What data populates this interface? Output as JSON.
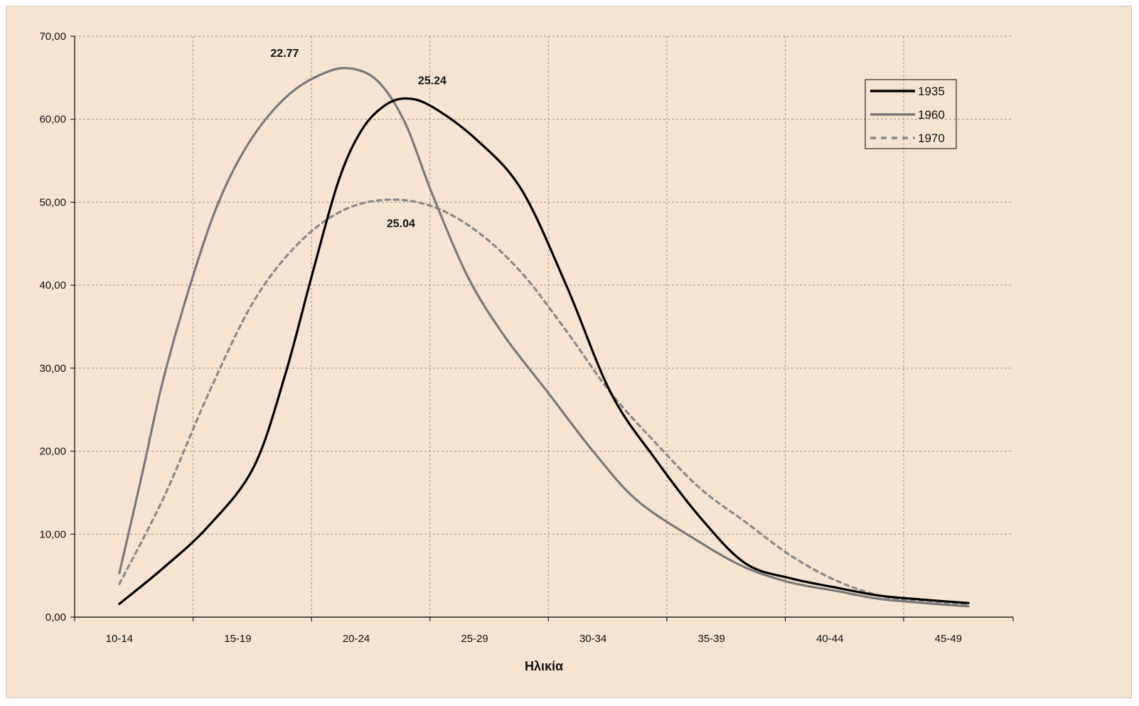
{
  "chart_data": {
    "type": "line",
    "x": [
      "10-14",
      "15-19",
      "20-24",
      "25-29",
      "30-34",
      "35-39",
      "40-44",
      "45-49"
    ],
    "xlabel": "Ηλικία",
    "ylabel": "",
    "ylim": [
      0,
      70
    ],
    "yticks": [
      "0,00",
      "10,00",
      "20,00",
      "30,00",
      "40,00",
      "50,00",
      "60,00",
      "70,00"
    ],
    "grid": true,
    "legend_position": "top-right",
    "series": [
      {
        "name": "1935",
        "color": "#000000",
        "style": "solid",
        "points": [
          [
            10.0,
            1.6
          ],
          [
            10.5,
            6.0
          ],
          [
            11.0,
            11.0
          ],
          [
            11.5,
            18.0
          ],
          [
            11.85,
            29.0
          ],
          [
            12.15,
            41.0
          ],
          [
            12.45,
            52.5
          ],
          [
            12.7,
            58.5
          ],
          [
            12.95,
            61.5
          ],
          [
            13.2,
            62.5
          ],
          [
            13.5,
            61.5
          ],
          [
            14.0,
            57.5
          ],
          [
            14.5,
            51.5
          ],
          [
            15.0,
            40.0
          ],
          [
            15.5,
            27.0
          ],
          [
            16.0,
            19.0
          ],
          [
            16.5,
            12.0
          ],
          [
            17.0,
            6.5
          ],
          [
            17.5,
            4.7
          ],
          [
            18.0,
            3.6
          ],
          [
            18.5,
            2.6
          ],
          [
            19.0,
            2.1
          ],
          [
            19.5,
            1.7
          ]
        ]
      },
      {
        "name": "1960",
        "color": "#7a7a7a",
        "style": "solid",
        "points": [
          [
            10.0,
            5.3
          ],
          [
            10.25,
            17.0
          ],
          [
            10.5,
            29.0
          ],
          [
            10.85,
            42.0
          ],
          [
            11.15,
            51.0
          ],
          [
            11.5,
            58.0
          ],
          [
            11.9,
            63.0
          ],
          [
            12.3,
            65.6
          ],
          [
            12.6,
            66.1
          ],
          [
            12.9,
            64.5
          ],
          [
            13.2,
            59.5
          ],
          [
            13.5,
            51.0
          ],
          [
            13.9,
            41.0
          ],
          [
            14.3,
            34.0
          ],
          [
            14.8,
            27.0
          ],
          [
            15.3,
            20.0
          ],
          [
            15.8,
            14.0
          ],
          [
            16.5,
            9.0
          ],
          [
            17.0,
            6.0
          ],
          [
            17.5,
            4.2
          ],
          [
            18.0,
            3.2
          ],
          [
            18.5,
            2.2
          ],
          [
            19.0,
            1.7
          ],
          [
            19.5,
            1.3
          ]
        ]
      },
      {
        "name": "1970",
        "color": "#8a8a8a",
        "style": "dashed",
        "points": [
          [
            10.0,
            4.0
          ],
          [
            10.5,
            14.5
          ],
          [
            11.0,
            27.0
          ],
          [
            11.5,
            38.0
          ],
          [
            12.0,
            45.0
          ],
          [
            12.5,
            49.0
          ],
          [
            13.0,
            50.3
          ],
          [
            13.5,
            49.5
          ],
          [
            14.0,
            46.5
          ],
          [
            14.5,
            41.5
          ],
          [
            15.0,
            34.5
          ],
          [
            15.5,
            27.0
          ],
          [
            16.0,
            21.0
          ],
          [
            16.5,
            15.5
          ],
          [
            17.0,
            11.5
          ],
          [
            17.5,
            7.5
          ],
          [
            18.0,
            4.5
          ],
          [
            18.5,
            2.6
          ],
          [
            19.0,
            1.8
          ],
          [
            19.5,
            1.5
          ]
        ]
      }
    ],
    "annotations": [
      {
        "text": "22.77",
        "x": 11.85,
        "y": 67.5
      },
      {
        "text": "25.24",
        "x": 13.5,
        "y": 64.2
      },
      {
        "text": "25.04",
        "x": 13.15,
        "y": 47.0
      }
    ]
  }
}
